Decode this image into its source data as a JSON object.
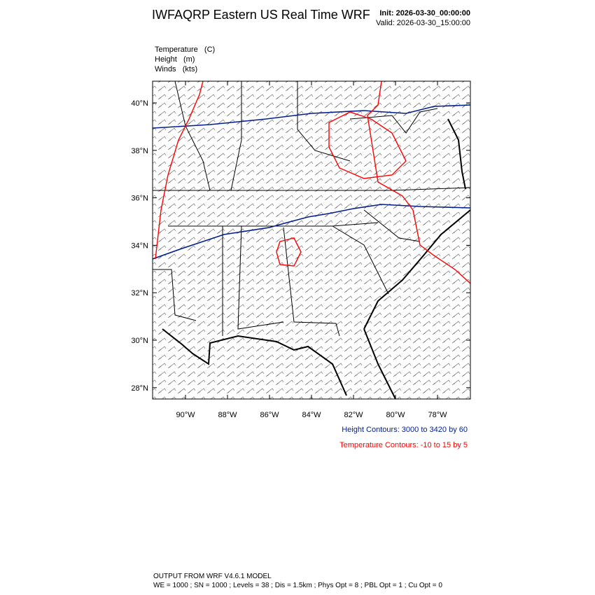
{
  "header": {
    "title": "IWFAQRP Eastern US Real Time WRF",
    "init": "Init: 2026-03-30_00:00:00",
    "valid": "Valid: 2026-03-30_15:00:00"
  },
  "fields": [
    "Temperature   (C)",
    "Height   (m)",
    "Winds   (kts)"
  ],
  "map": {
    "lat_labels": [
      "40°N",
      "38°N",
      "36°N",
      "34°N",
      "32°N",
      "30°N",
      "28°N"
    ],
    "lon_labels": [
      "90°W",
      "88°W",
      "86°W",
      "84°W",
      "82°W",
      "80°W",
      "78°W"
    ]
  },
  "legend": {
    "height_contours": "Height Contours: 3000 to 3420 by 60",
    "temperature_contours": "Temperature Contours: -10 to 15 by 5"
  },
  "footer": [
    "OUTPUT FROM WRF V4.6.1 MODEL",
    "WE = 1000 ; SN = 1000 ; Levels = 38 ; Dis = 1.5km ; Phys Opt = 8 ; PBL Opt = 1 ; Cu Opt = 0"
  ]
}
